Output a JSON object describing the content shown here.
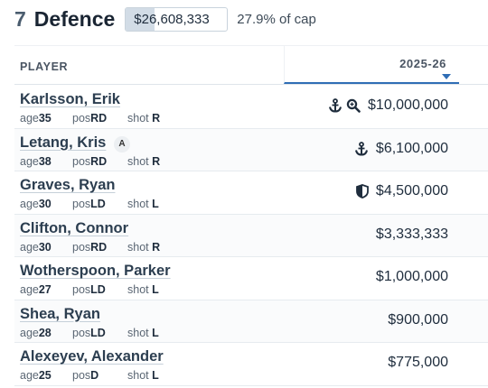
{
  "header": {
    "count": "7",
    "title": "Defence",
    "cap_total": "$26,608,333",
    "cap_pct": "27.9% of cap",
    "cap_fraction": 0.279
  },
  "table": {
    "col_player": "PLAYER",
    "col_season": "2025-26"
  },
  "labels": {
    "age": "age",
    "pos": "pos",
    "shot": "shot"
  },
  "players": [
    {
      "name": "Karlsson, Erik",
      "badge": "",
      "age": "35",
      "pos": "RD",
      "shot": "R",
      "salary": "$10,000,000",
      "icons": [
        "anchor-icon",
        "search-icon"
      ]
    },
    {
      "name": "Letang, Kris",
      "badge": "A",
      "age": "38",
      "pos": "RD",
      "shot": "R",
      "salary": "$6,100,000",
      "icons": [
        "anchor-icon"
      ]
    },
    {
      "name": "Graves, Ryan",
      "badge": "",
      "age": "30",
      "pos": "LD",
      "shot": "L",
      "salary": "$4,500,000",
      "icons": [
        "shield-icon"
      ]
    },
    {
      "name": "Clifton, Connor",
      "badge": "",
      "age": "30",
      "pos": "RD",
      "shot": "R",
      "salary": "$3,333,333",
      "icons": []
    },
    {
      "name": "Wotherspoon, Parker",
      "badge": "",
      "age": "27",
      "pos": "LD",
      "shot": "L",
      "salary": "$1,000,000",
      "icons": []
    },
    {
      "name": "Shea, Ryan",
      "badge": "",
      "age": "28",
      "pos": "LD",
      "shot": "L",
      "salary": "$900,000",
      "icons": []
    },
    {
      "name": "Alexeyev, Alexander",
      "badge": "",
      "age": "25",
      "pos": "D",
      "shot": "L",
      "salary": "$775,000",
      "icons": []
    }
  ]
}
